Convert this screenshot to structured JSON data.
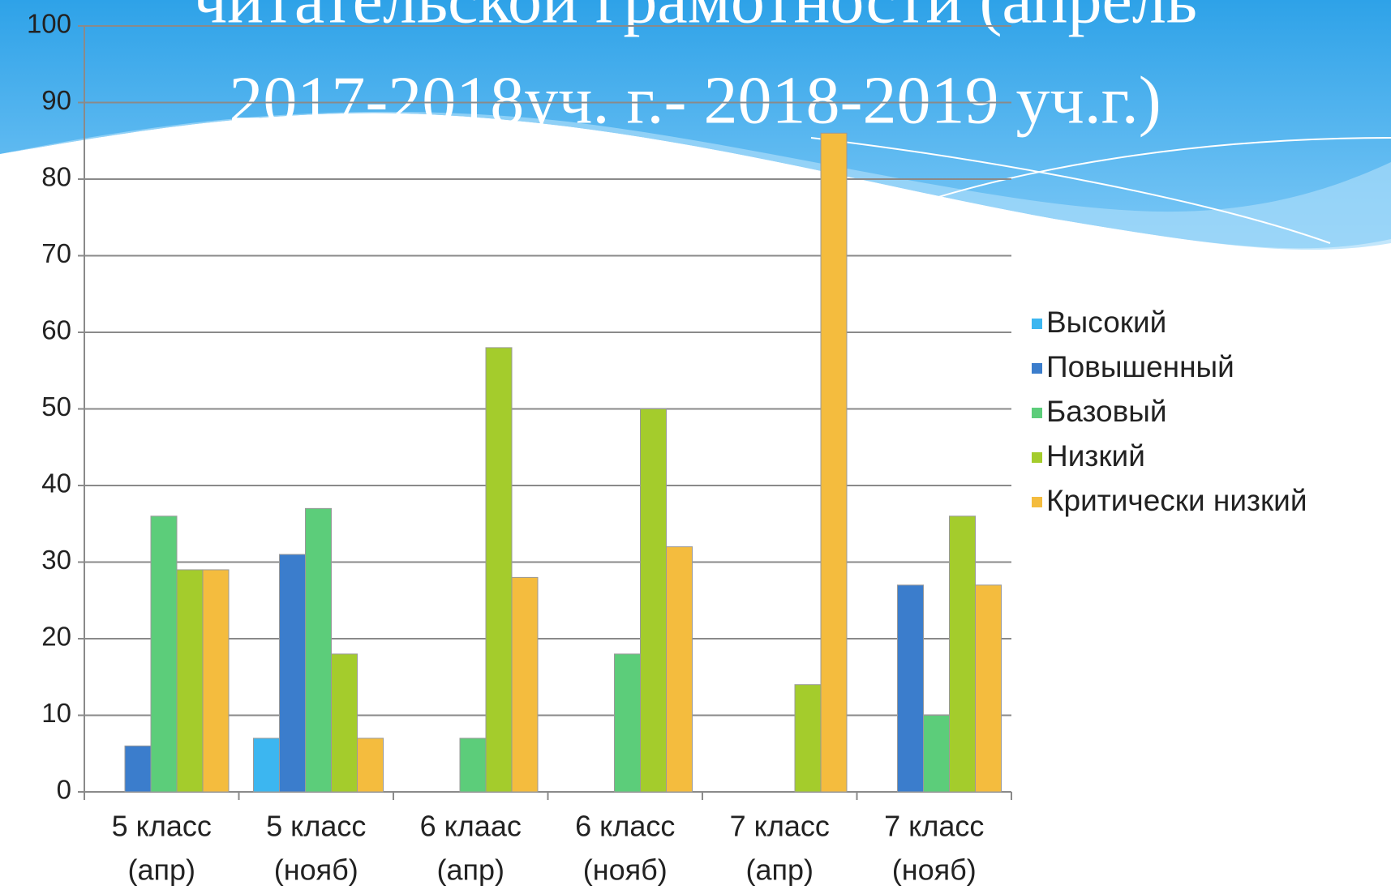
{
  "chart_data": {
    "type": "bar",
    "title_lines": [
      "читательской грамотности (апрель",
      "2017-2018уч. г.- 2018-2019 уч.г.)"
    ],
    "categories": [
      [
        "5 класс",
        "(апр)"
      ],
      [
        "5 класс",
        "(нояб)"
      ],
      [
        "6 клаас",
        "(апр)"
      ],
      [
        "6 класс",
        "(нояб)"
      ],
      [
        "7 класс",
        "(апр)"
      ],
      [
        "7 класс",
        "(нояб)"
      ]
    ],
    "series": [
      {
        "name": "Высокий",
        "color": "#3cb6f0",
        "values": [
          null,
          7,
          null,
          null,
          null,
          null
        ]
      },
      {
        "name": "Повышенный",
        "color": "#3b7dcc",
        "values": [
          6,
          31,
          null,
          null,
          null,
          27
        ]
      },
      {
        "name": "Базовый",
        "color": "#5ccd7a",
        "values": [
          36,
          37,
          7,
          18,
          null,
          10
        ]
      },
      {
        "name": "Низкий",
        "color": "#a4cc2c",
        "values": [
          29,
          18,
          58,
          50,
          14,
          36
        ]
      },
      {
        "name": "Критически низкий",
        "color": "#f4bc3e",
        "values": [
          29,
          7,
          28,
          32,
          86,
          27
        ]
      }
    ],
    "ylim": [
      0,
      100
    ],
    "yticks": [
      0,
      10,
      20,
      30,
      40,
      50,
      60,
      70,
      80,
      90,
      100
    ],
    "grid": true,
    "legend": "right"
  }
}
